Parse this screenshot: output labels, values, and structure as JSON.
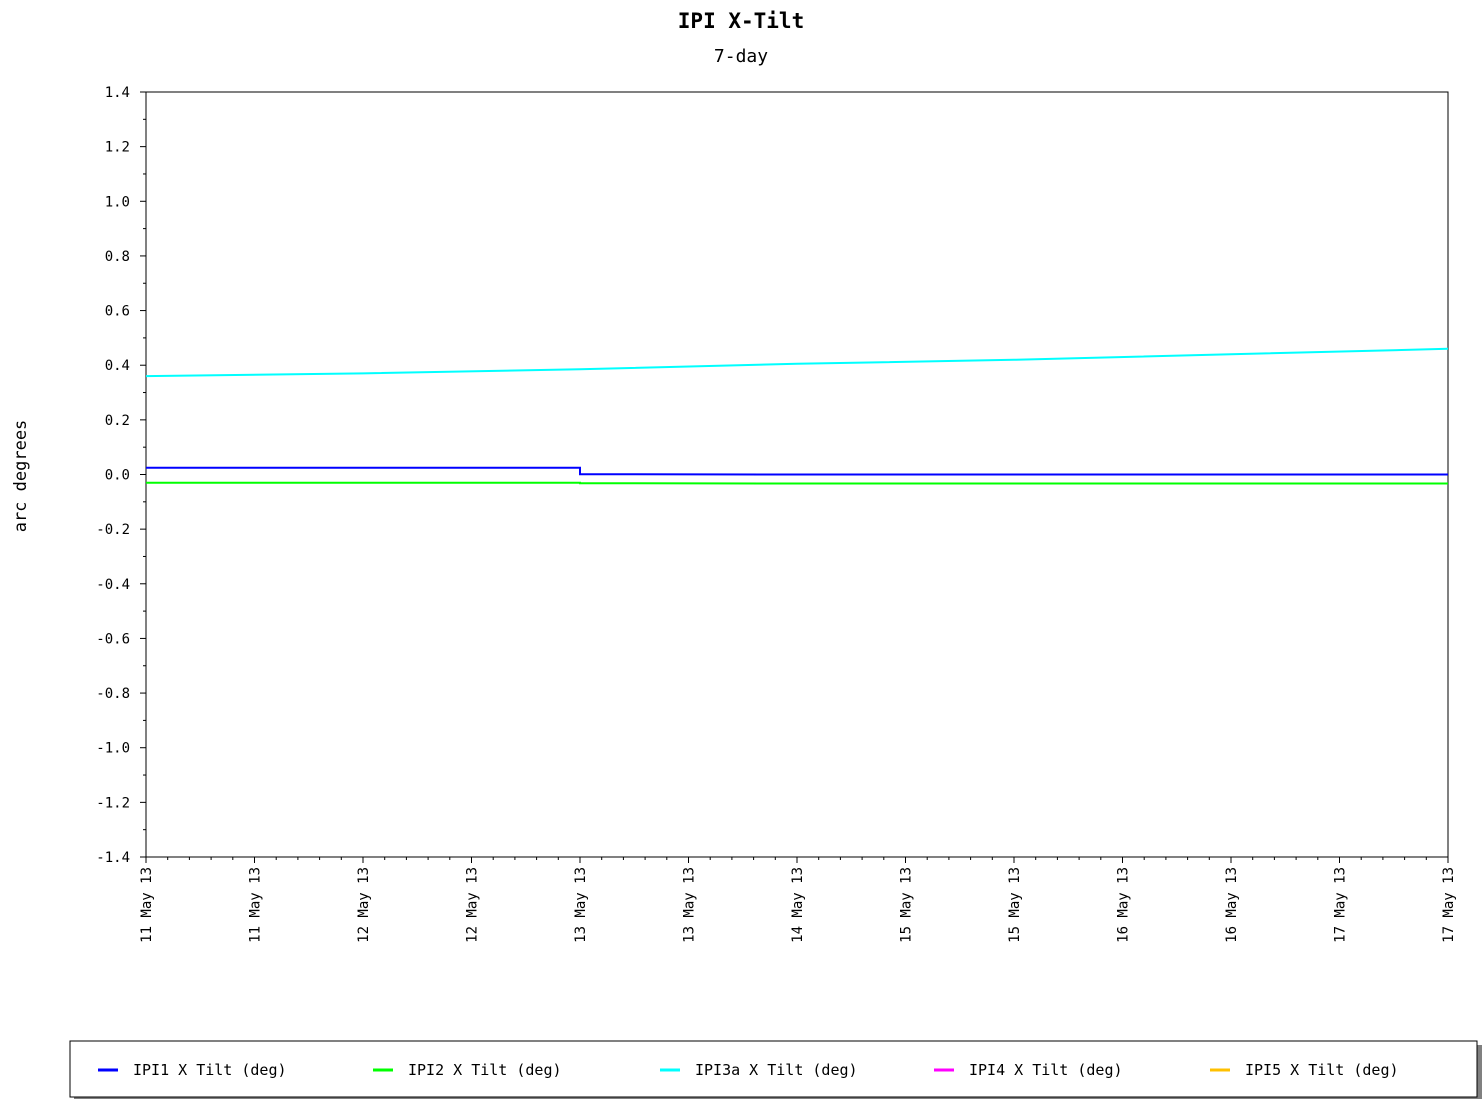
{
  "chart_data": {
    "type": "line",
    "title": "IPI X-Tilt",
    "subtitle": "7-day",
    "ylabel": "arc degrees",
    "xlabel": "",
    "ylim": [
      -1.4,
      1.4
    ],
    "yticks": [
      "1.4",
      "1.2",
      "1.0",
      "0.8",
      "0.6",
      "0.4",
      "0.2",
      "0.0",
      "-0.2",
      "-0.4",
      "-0.6",
      "-0.8",
      "-1.0",
      "-1.2",
      "-1.4"
    ],
    "xlim": [
      "11 May 13",
      "17 May 13"
    ],
    "xticks": [
      "11 May 13",
      "11 May 13",
      "12 May 13",
      "12 May 13",
      "13 May 13",
      "13 May 13",
      "14 May 13",
      "15 May 13",
      "15 May 13",
      "16 May 13",
      "16 May 13",
      "17 May 13",
      "17 May 13"
    ],
    "grid": false,
    "legend_position": "bottom",
    "series": [
      {
        "name": "IPI1 X Tilt (deg)",
        "color": "#0000ff",
        "values": [
          [
            "11 May 13",
            0.025
          ],
          [
            "12 May 13",
            0.025
          ],
          [
            "13 May 13",
            0.025
          ],
          [
            "13 May 13",
            0.001
          ],
          [
            "14 May 13",
            0.0
          ],
          [
            "15 May 13",
            0.0
          ],
          [
            "16 May 13",
            0.0
          ],
          [
            "17 May 13",
            0.0
          ]
        ]
      },
      {
        "name": "IPI2 X Tilt (deg)",
        "color": "#00ff00",
        "values": [
          [
            "11 May 13",
            -0.03
          ],
          [
            "12 May 13",
            -0.03
          ],
          [
            "13 May 13",
            -0.03
          ],
          [
            "13 May 13",
            -0.032
          ],
          [
            "14 May 13",
            -0.033
          ],
          [
            "15 May 13",
            -0.033
          ],
          [
            "16 May 13",
            -0.033
          ],
          [
            "17 May 13",
            -0.033
          ]
        ]
      },
      {
        "name": "IPI3a X Tilt (deg)",
        "color": "#00ffff",
        "values": [
          [
            "11 May 13",
            0.36
          ],
          [
            "12 May 13",
            0.37
          ],
          [
            "13 May 13",
            0.385
          ],
          [
            "14 May 13",
            0.405
          ],
          [
            "15 May 13",
            0.42
          ],
          [
            "16 May 13",
            0.44
          ],
          [
            "17 May 13",
            0.46
          ]
        ]
      },
      {
        "name": "IPI4 X Tilt (deg)",
        "color": "#ff00ff",
        "values": []
      },
      {
        "name": "IPI5 X Tilt (deg)",
        "color": "#ffc000",
        "values": []
      }
    ]
  }
}
